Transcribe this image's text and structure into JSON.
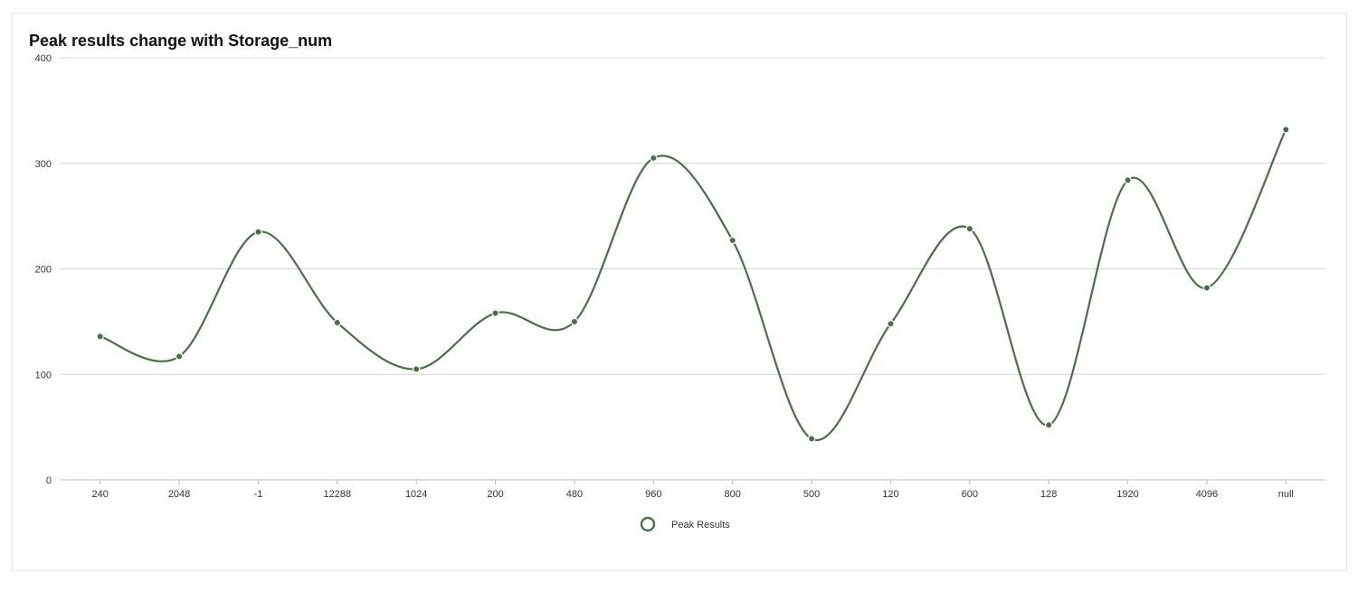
{
  "chart_data": {
    "type": "line",
    "title": "Peak results change with Storage_num",
    "xlabel": "",
    "ylabel": "",
    "categories": [
      "240",
      "2048",
      "-1",
      "12288",
      "1024",
      "200",
      "480",
      "960",
      "800",
      "500",
      "120",
      "600",
      "128",
      "1920",
      "4096",
      "null"
    ],
    "series": [
      {
        "name": "Peak Results",
        "values": [
          136,
          117,
          235,
          149,
          105,
          158,
          150,
          305,
          227,
          39,
          148,
          238,
          52,
          284,
          182,
          332
        ]
      }
    ],
    "ylim": [
      0,
      400
    ],
    "yticks": [
      "0",
      "100",
      "200",
      "300",
      "400"
    ],
    "smooth": true,
    "grid": "horizontal",
    "legend_position": "bottom-center",
    "colors": {
      "series": "#4a6e47",
      "grid": "#d4d4d4",
      "axis": "#bdbdbd"
    }
  }
}
